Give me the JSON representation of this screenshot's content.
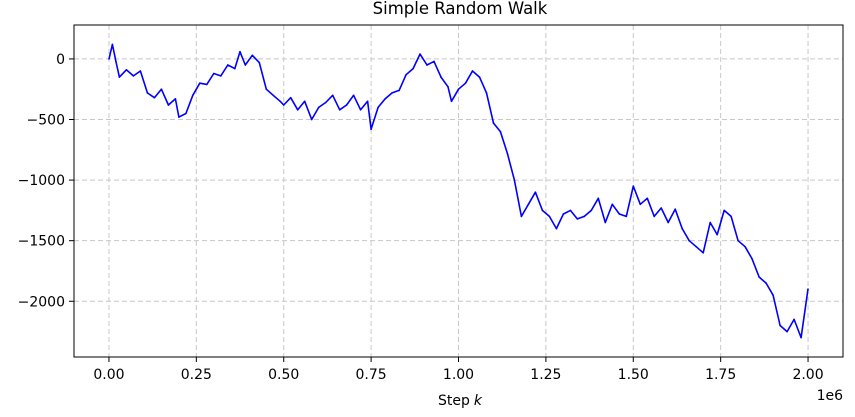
{
  "chart_data": {
    "type": "line",
    "title": "Simple Random Walk",
    "xlabel": "Step",
    "xlabel_var": "k",
    "ylabel": "",
    "x_offset_text": "1e6",
    "xlim": [
      -0.1,
      2.1
    ],
    "ylim": [
      -2460,
      280
    ],
    "grid": true,
    "x_ticks": [
      0.0,
      0.25,
      0.5,
      0.75,
      1.0,
      1.25,
      1.5,
      1.75,
      2.0
    ],
    "x_tick_labels": [
      "0.00",
      "0.25",
      "0.50",
      "0.75",
      "1.00",
      "1.25",
      "1.50",
      "1.75",
      "2.00"
    ],
    "y_ticks": [
      0,
      -500,
      -1000,
      -1500,
      -2000
    ],
    "y_tick_labels": [
      "0",
      "−500",
      "−1000",
      "−1500",
      "−2000"
    ],
    "series": [
      {
        "color": "#0000ff",
        "x": [
          0.0,
          0.01,
          0.02,
          0.03,
          0.05,
          0.07,
          0.09,
          0.11,
          0.13,
          0.15,
          0.17,
          0.19,
          0.2,
          0.22,
          0.24,
          0.26,
          0.28,
          0.3,
          0.32,
          0.34,
          0.36,
          0.375,
          0.39,
          0.41,
          0.43,
          0.45,
          0.47,
          0.49,
          0.5,
          0.52,
          0.54,
          0.56,
          0.58,
          0.6,
          0.62,
          0.64,
          0.66,
          0.68,
          0.7,
          0.72,
          0.74,
          0.75,
          0.77,
          0.79,
          0.81,
          0.83,
          0.85,
          0.87,
          0.89,
          0.91,
          0.93,
          0.95,
          0.97,
          0.98,
          1.0,
          1.02,
          1.04,
          1.06,
          1.08,
          1.1,
          1.12,
          1.14,
          1.16,
          1.18,
          1.2,
          1.22,
          1.24,
          1.26,
          1.28,
          1.3,
          1.32,
          1.34,
          1.36,
          1.38,
          1.4,
          1.42,
          1.44,
          1.46,
          1.48,
          1.5,
          1.52,
          1.54,
          1.56,
          1.58,
          1.6,
          1.62,
          1.64,
          1.66,
          1.68,
          1.7,
          1.72,
          1.74,
          1.76,
          1.78,
          1.8,
          1.82,
          1.84,
          1.86,
          1.88,
          1.9,
          1.92,
          1.94,
          1.96,
          1.98,
          2.0
        ],
        "y": [
          0,
          120,
          -20,
          -150,
          -90,
          -140,
          -100,
          -280,
          -320,
          -250,
          -380,
          -330,
          -480,
          -450,
          -300,
          -200,
          -210,
          -120,
          -140,
          -50,
          -80,
          60,
          -50,
          30,
          -30,
          -250,
          -300,
          -350,
          -380,
          -320,
          -420,
          -350,
          -500,
          -400,
          -360,
          -300,
          -420,
          -380,
          -300,
          -420,
          -350,
          -580,
          -400,
          -330,
          -280,
          -260,
          -130,
          -80,
          40,
          -50,
          -20,
          -150,
          -230,
          -350,
          -250,
          -200,
          -100,
          -150,
          -280,
          -530,
          -600,
          -780,
          -1000,
          -1300,
          -1200,
          -1100,
          -1250,
          -1300,
          -1400,
          -1280,
          -1250,
          -1320,
          -1300,
          -1250,
          -1150,
          -1350,
          -1200,
          -1280,
          -1300,
          -1050,
          -1200,
          -1150,
          -1300,
          -1230,
          -1350,
          -1240,
          -1400,
          -1500,
          -1550,
          -1600,
          -1350,
          -1450,
          -1250,
          -1300,
          -1500,
          -1550,
          -1650,
          -1800,
          -1850,
          -1950,
          -2200,
          -2250,
          -2150,
          -2300,
          -1900
        ]
      }
    ]
  }
}
